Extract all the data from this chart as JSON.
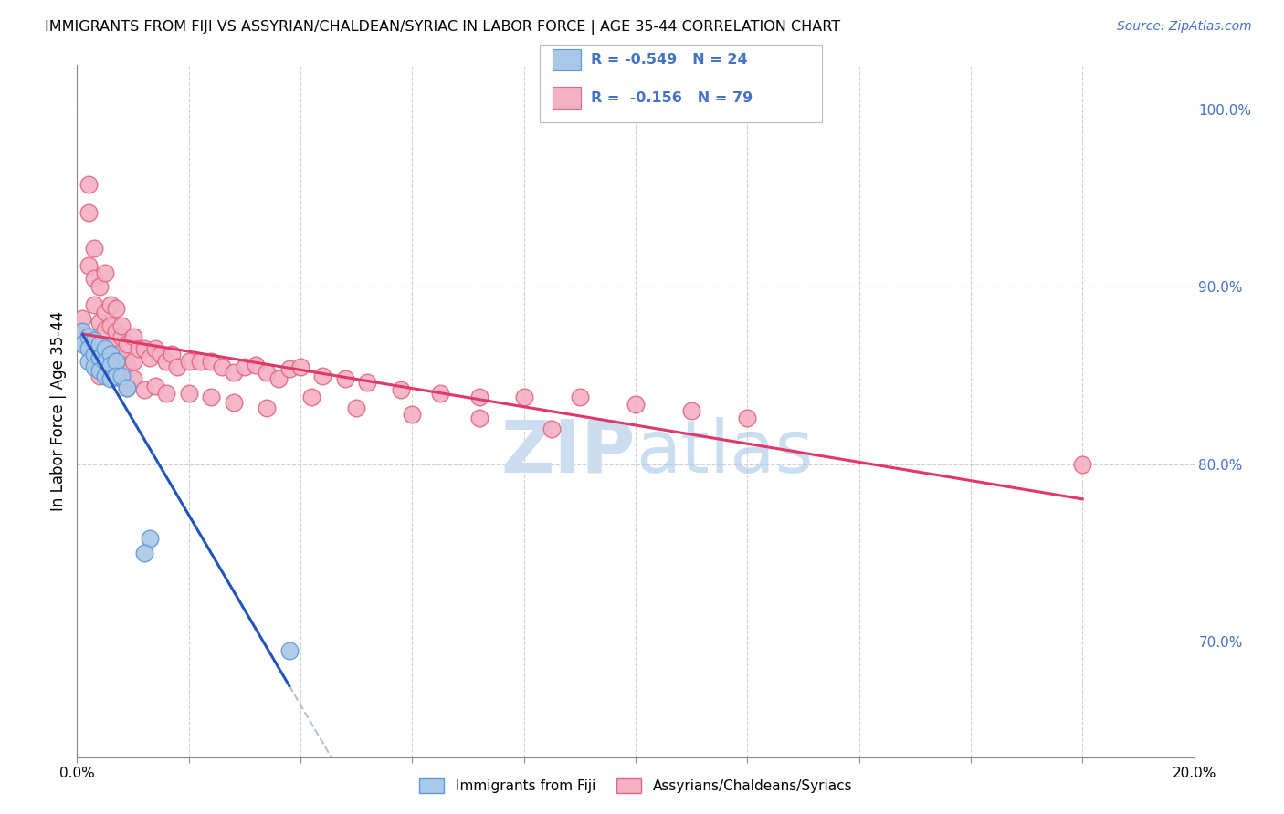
{
  "title": "IMMIGRANTS FROM FIJI VS ASSYRIAN/CHALDEAN/SYRIAC IN LABOR FORCE | AGE 35-44 CORRELATION CHART",
  "source": "Source: ZipAtlas.com",
  "ylabel": "In Labor Force | Age 35-44",
  "xlim": [
    0.0,
    0.2
  ],
  "ylim": [
    0.635,
    1.025
  ],
  "yticks": [
    0.7,
    0.8,
    0.9,
    1.0
  ],
  "ytick_labels": [
    "70.0%",
    "80.0%",
    "90.0%",
    "100.0%"
  ],
  "xticks": [
    0.0,
    0.02,
    0.04,
    0.06,
    0.08,
    0.1,
    0.12,
    0.14,
    0.16,
    0.18,
    0.2
  ],
  "xtick_labels": [
    "0.0%",
    "",
    "",
    "",
    "",
    "",
    "",
    "",
    "",
    "",
    "20.0%"
  ],
  "fiji_color": "#aac8e8",
  "fiji_edge_color": "#5b9bd5",
  "assyrian_color": "#f4b0c4",
  "assyrian_edge_color": "#e06880",
  "fiji_R": -0.549,
  "fiji_N": 24,
  "assyrian_R": -0.156,
  "assyrian_N": 79,
  "fiji_line_color": "#2255bb",
  "assyrian_line_color": "#e03868",
  "dashed_line_color": "#9ab4cc",
  "legend_text_color": "#4472c4",
  "watermark_color": "#ccddf0",
  "fiji_x": [
    0.001,
    0.001,
    0.002,
    0.002,
    0.002,
    0.003,
    0.003,
    0.003,
    0.004,
    0.004,
    0.004,
    0.005,
    0.005,
    0.005,
    0.006,
    0.006,
    0.006,
    0.007,
    0.007,
    0.008,
    0.009,
    0.013,
    0.038,
    0.012
  ],
  "fiji_y": [
    0.875,
    0.868,
    0.872,
    0.865,
    0.858,
    0.87,
    0.862,
    0.855,
    0.868,
    0.86,
    0.853,
    0.865,
    0.858,
    0.85,
    0.862,
    0.856,
    0.848,
    0.858,
    0.85,
    0.85,
    0.843,
    0.758,
    0.695,
    0.75
  ],
  "assyrian_x": [
    0.001,
    0.001,
    0.002,
    0.002,
    0.002,
    0.003,
    0.003,
    0.003,
    0.004,
    0.004,
    0.005,
    0.005,
    0.005,
    0.005,
    0.006,
    0.006,
    0.006,
    0.007,
    0.007,
    0.007,
    0.008,
    0.008,
    0.008,
    0.009,
    0.009,
    0.01,
    0.01,
    0.011,
    0.012,
    0.013,
    0.014,
    0.015,
    0.016,
    0.017,
    0.018,
    0.02,
    0.022,
    0.024,
    0.026,
    0.028,
    0.03,
    0.032,
    0.034,
    0.036,
    0.038,
    0.04,
    0.044,
    0.048,
    0.052,
    0.058,
    0.065,
    0.072,
    0.08,
    0.09,
    0.1,
    0.11,
    0.12,
    0.002,
    0.003,
    0.004,
    0.005,
    0.006,
    0.007,
    0.008,
    0.009,
    0.01,
    0.012,
    0.014,
    0.016,
    0.02,
    0.024,
    0.028,
    0.034,
    0.042,
    0.05,
    0.06,
    0.072,
    0.085,
    0.18
  ],
  "assyrian_y": [
    0.875,
    0.882,
    0.912,
    0.958,
    0.942,
    0.905,
    0.922,
    0.89,
    0.88,
    0.9,
    0.876,
    0.864,
    0.886,
    0.908,
    0.878,
    0.866,
    0.89,
    0.875,
    0.862,
    0.888,
    0.872,
    0.86,
    0.878,
    0.868,
    0.856,
    0.872,
    0.858,
    0.865,
    0.865,
    0.86,
    0.865,
    0.862,
    0.858,
    0.862,
    0.855,
    0.858,
    0.858,
    0.858,
    0.855,
    0.852,
    0.855,
    0.856,
    0.852,
    0.848,
    0.854,
    0.855,
    0.85,
    0.848,
    0.846,
    0.842,
    0.84,
    0.838,
    0.838,
    0.838,
    0.834,
    0.83,
    0.826,
    0.868,
    0.858,
    0.85,
    0.86,
    0.855,
    0.852,
    0.848,
    0.843,
    0.848,
    0.842,
    0.844,
    0.84,
    0.84,
    0.838,
    0.835,
    0.832,
    0.838,
    0.832,
    0.828,
    0.826,
    0.82,
    0.8
  ]
}
